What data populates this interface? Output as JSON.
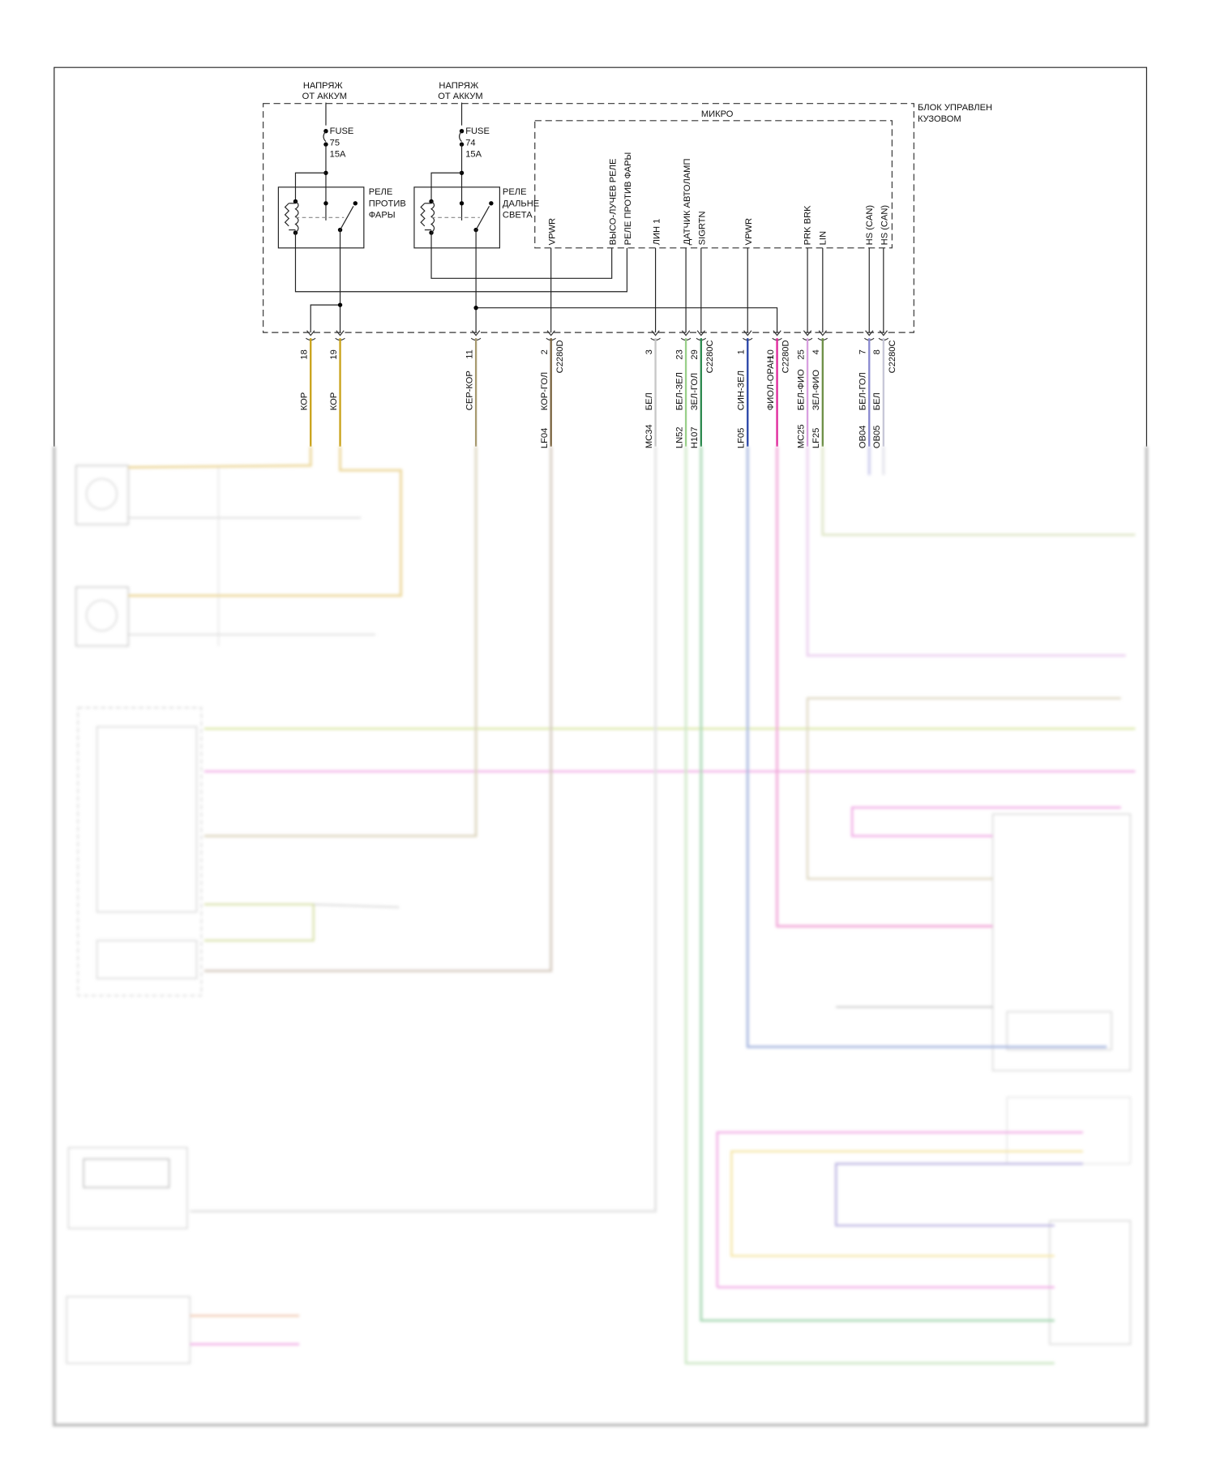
{
  "module": {
    "title_line1": "БЛОК УПРАВЛЕН",
    "title_line2": "КУЗОВОМ",
    "micro_label": "МИКРО"
  },
  "supplies": [
    {
      "line1": "НАПРЯЖ",
      "line2": "ОТ АККУМ",
      "fuse": "FUSE",
      "fuse_no": "75",
      "rating": "15A",
      "relay": [
        "РЕЛЕ",
        "ПРОТИВ",
        "ФАРЫ"
      ]
    },
    {
      "line1": "НАПРЯЖ",
      "line2": "ОТ АККУМ",
      "fuse": "FUSE",
      "fuse_no": "74",
      "rating": "15A",
      "relay": [
        "РЕЛЕ",
        "ДАЛЬНЕ",
        "СВЕТА"
      ]
    }
  ],
  "micro_pins": [
    "VPWR",
    "ВЫСО-ЛУЧЕВ РЕЛЕ",
    "РЕЛЕ ПРОТИВ ФАРЫ",
    "ЛИН 1",
    "ДАТЧИК АВТОЛАМП",
    "SIGRTN",
    "VPWR",
    "PRK BRK",
    "LIN",
    "HS (CAN)",
    "HS (CAN)"
  ],
  "wires": [
    {
      "pin": "18",
      "color_name": "КОР",
      "connector": "",
      "circuit": "",
      "color": "#c9a21a",
      "faint": "#ecd79a"
    },
    {
      "pin": "19",
      "color_name": "КОР",
      "connector": "",
      "circuit": "",
      "color": "#c9a21a",
      "faint": "#ecd79a"
    },
    {
      "pin": "11",
      "color_name": "СЕР-КОР",
      "connector": "",
      "circuit": "",
      "color": "#a89a70",
      "faint": "#ddd6c0"
    },
    {
      "pin": "2",
      "color_name": "КОР-ГОЛ",
      "connector": "C2280D",
      "circuit": "LF04",
      "color": "#7a6440",
      "faint": "#d6cbc0"
    },
    {
      "pin": "3",
      "color_name": "БЕЛ",
      "connector": "",
      "circuit": "MC34",
      "color": "#c8c8c8",
      "faint": "#e2e2e2"
    },
    {
      "pin": "23",
      "color_name": "БЕЛ-ЗЕЛ",
      "connector": "",
      "circuit": "LN52",
      "color": "#9ad08a",
      "faint": "#cfe8c8"
    },
    {
      "pin": "29",
      "color_name": "ЗЕЛ-ГОЛ",
      "connector": "C2280C",
      "circuit": "H107",
      "color": "#2e8a50",
      "faint": "#a8d8b4"
    },
    {
      "pin": "1",
      "color_name": "СИН-ЗЕЛ",
      "connector": "",
      "circuit": "LF05",
      "color": "#2a46a8",
      "faint": "#a8b8e0"
    },
    {
      "pin": "10",
      "color_name": "ФИОЛ-ОРАН",
      "connector": "C2280D",
      "circuit": "",
      "color": "#e0289c",
      "faint": "#f2a8d8"
    },
    {
      "pin": "25",
      "color_name": "БЕЛ-ФИО",
      "connector": "",
      "circuit": "MC25",
      "color": "#d8a0e0",
      "faint": "#ecd0f0"
    },
    {
      "pin": "4",
      "color_name": "ЗЕЛ-ФИО",
      "connector": "",
      "circuit": "LF25",
      "color": "#6e9048",
      "faint": "#dfe6c8"
    },
    {
      "pin": "7",
      "color_name": "БЕЛ-ГОЛ",
      "connector": "",
      "circuit": "OB04",
      "color": "#8a8ad0",
      "faint": "#c8c8ec"
    },
    {
      "pin": "8",
      "color_name": "БЕЛ",
      "connector": "C2280C",
      "circuit": "OB05",
      "color": "#c8c8d8",
      "faint": "#e2e2ea"
    }
  ]
}
